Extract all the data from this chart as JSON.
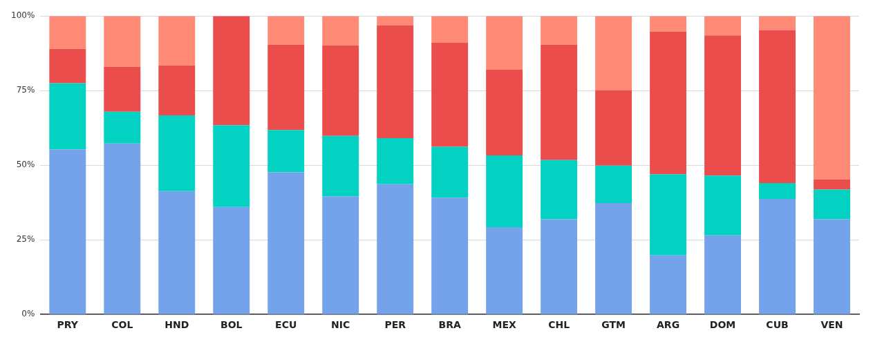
{
  "chart_data": {
    "type": "bar",
    "stacked": true,
    "categories": [
      "PRY",
      "COL",
      "HND",
      "BOL",
      "ECU",
      "NIC",
      "PER",
      "BRA",
      "MEX",
      "CHL",
      "GTM",
      "ARG",
      "DOM",
      "CUB",
      "VEN"
    ],
    "series": [
      {
        "color": "#74a3ec",
        "values": [
          55.3,
          57.3,
          41.3,
          36.0,
          47.6,
          39.6,
          43.6,
          39.1,
          29.2,
          31.9,
          37.3,
          19.8,
          26.5,
          38.7,
          31.9
        ]
      },
      {
        "color": "#03d1c1",
        "values": [
          22.2,
          10.6,
          25.4,
          27.4,
          14.2,
          20.2,
          15.5,
          17.1,
          24.1,
          19.8,
          12.6,
          27.2,
          20.0,
          5.3,
          9.9
        ]
      },
      {
        "color": "#eb4c4c",
        "values": [
          11.5,
          15.0,
          16.7,
          36.6,
          28.5,
          30.3,
          37.8,
          34.8,
          28.7,
          38.6,
          25.2,
          47.8,
          47.0,
          51.3,
          3.4
        ]
      },
      {
        "color": "#ff8a75",
        "values": [
          11.0,
          17.1,
          16.6,
          0,
          9.7,
          9.9,
          3.1,
          9.0,
          18.0,
          9.7,
          24.9,
          5.2,
          6.5,
          4.7,
          54.8
        ]
      }
    ],
    "ylim": [
      0,
      100
    ],
    "yticks": [
      {
        "value": 0,
        "label": "0%"
      },
      {
        "value": 25,
        "label": "25%"
      },
      {
        "value": 50,
        "label": "50%"
      },
      {
        "value": 75,
        "label": "75%"
      },
      {
        "value": 100,
        "label": "100%"
      }
    ],
    "grid": "y",
    "legend": false
  }
}
